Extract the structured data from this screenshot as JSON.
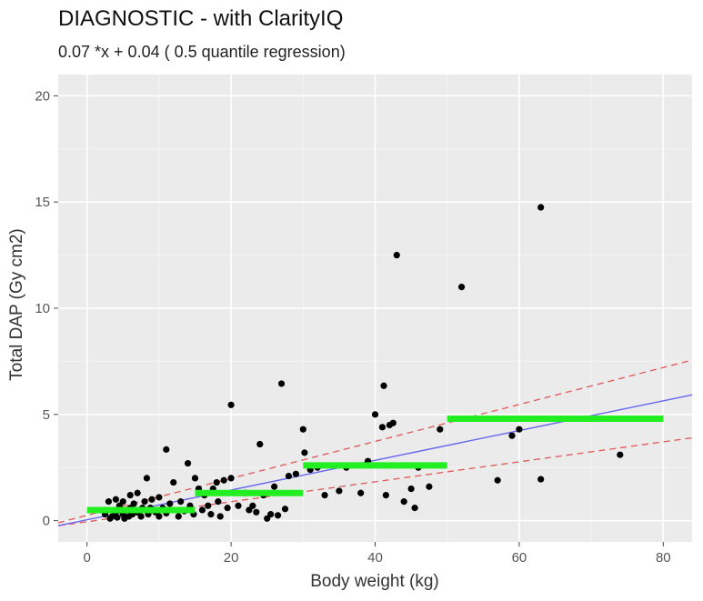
{
  "chart_data": {
    "type": "scatter",
    "title": "DIAGNOSTIC - with ClarityIQ",
    "subtitle": "0.07 *x + 0.04 ( 0.5 quantile regression)",
    "xlabel": "Body weight (kg)",
    "ylabel": "Total DAP (Gy cm2)",
    "xlim": [
      -4,
      84
    ],
    "ylim": [
      -1,
      21
    ],
    "x_ticks": [
      0,
      20,
      40,
      60,
      80
    ],
    "y_ticks": [
      0,
      5,
      10,
      15,
      20
    ],
    "grid": true,
    "points": [
      [
        2.5,
        0.3
      ],
      [
        3,
        0.5
      ],
      [
        3,
        0.9
      ],
      [
        3.2,
        0.1
      ],
      [
        3.5,
        0.2
      ],
      [
        4,
        0.4
      ],
      [
        4,
        1.0
      ],
      [
        4.2,
        0.15
      ],
      [
        4.5,
        0.7
      ],
      [
        5,
        0.3
      ],
      [
        5,
        0.9
      ],
      [
        5.2,
        0.1
      ],
      [
        5.5,
        0.5
      ],
      [
        5.8,
        0.2
      ],
      [
        6,
        1.2
      ],
      [
        6,
        0.6
      ],
      [
        6.3,
        0.3
      ],
      [
        6.5,
        0.8
      ],
      [
        7,
        0.4
      ],
      [
        7,
        1.3
      ],
      [
        7.5,
        0.2
      ],
      [
        7.7,
        0.6
      ],
      [
        8,
        0.9
      ],
      [
        8.3,
        2.0
      ],
      [
        8.5,
        0.3
      ],
      [
        8.8,
        0.6
      ],
      [
        9,
        1.0
      ],
      [
        9.5,
        0.4
      ],
      [
        10,
        0.2
      ],
      [
        10,
        1.1
      ],
      [
        10.5,
        0.6
      ],
      [
        11,
        0.35
      ],
      [
        11,
        3.35
      ],
      [
        11.5,
        0.8
      ],
      [
        12,
        1.8
      ],
      [
        12.3,
        0.5
      ],
      [
        12.7,
        0.2
      ],
      [
        13,
        0.9
      ],
      [
        13.5,
        0.45
      ],
      [
        14,
        2.7
      ],
      [
        14.3,
        0.7
      ],
      [
        14.8,
        0.3
      ],
      [
        15,
        2.0
      ],
      [
        15.5,
        1.5
      ],
      [
        16,
        0.5
      ],
      [
        16.3,
        1.2
      ],
      [
        16.8,
        0.7
      ],
      [
        17.2,
        0.3
      ],
      [
        17.5,
        1.5
      ],
      [
        18,
        1.8
      ],
      [
        18.2,
        0.9
      ],
      [
        18.5,
        0.2
      ],
      [
        19,
        1.9
      ],
      [
        19.5,
        0.6
      ],
      [
        20,
        2.0
      ],
      [
        20,
        5.45
      ],
      [
        21,
        0.7
      ],
      [
        22,
        1.3
      ],
      [
        22.5,
        0.5
      ],
      [
        23,
        0.7
      ],
      [
        23.5,
        0.4
      ],
      [
        24,
        3.6
      ],
      [
        24.5,
        1.2
      ],
      [
        25,
        0.1
      ],
      [
        25.5,
        0.3
      ],
      [
        26,
        1.6
      ],
      [
        26.5,
        0.25
      ],
      [
        27,
        6.45
      ],
      [
        27.5,
        0.55
      ],
      [
        28,
        2.1
      ],
      [
        29,
        2.2
      ],
      [
        30,
        4.3
      ],
      [
        30.2,
        3.2
      ],
      [
        31,
        2.4
      ],
      [
        32,
        2.5
      ],
      [
        33,
        1.2
      ],
      [
        35,
        1.4
      ],
      [
        36,
        2.5
      ],
      [
        38,
        1.3
      ],
      [
        39,
        2.8
      ],
      [
        40,
        5.0
      ],
      [
        41,
        4.4
      ],
      [
        41.2,
        6.35
      ],
      [
        41.5,
        1.2
      ],
      [
        42,
        4.5
      ],
      [
        42.5,
        4.6
      ],
      [
        43,
        12.5
      ],
      [
        44,
        0.9
      ],
      [
        45,
        1.5
      ],
      [
        45.5,
        0.6
      ],
      [
        46,
        2.5
      ],
      [
        47.5,
        1.6
      ],
      [
        49,
        4.3
      ],
      [
        52,
        11.0
      ],
      [
        57,
        1.9
      ],
      [
        59,
        4.0
      ],
      [
        60,
        4.3
      ],
      [
        63,
        1.95
      ],
      [
        63,
        14.75
      ],
      [
        74,
        3.1
      ]
    ],
    "regression_line": {
      "slope": 0.07,
      "intercept": 0.04,
      "color": "#6666ee"
    },
    "quantile_bands": [
      {
        "slope": 0.087,
        "intercept": 0.25,
        "color": "#e06060",
        "dash": true
      },
      {
        "slope": 0.047,
        "intercept": -0.05,
        "color": "#e06060",
        "dash": true
      }
    ],
    "group_medians": [
      {
        "x0": 0,
        "x1": 15,
        "y": 0.5
      },
      {
        "x0": 15,
        "x1": 30,
        "y": 1.3
      },
      {
        "x0": 30,
        "x1": 50,
        "y": 2.6
      },
      {
        "x0": 50,
        "x1": 80,
        "y": 4.8
      }
    ],
    "colors": {
      "panel": "#ebebeb",
      "grid_major": "#ffffff",
      "grid_minor": "#f5f5f5",
      "points": "#000000",
      "medians": "#22ee22"
    }
  }
}
